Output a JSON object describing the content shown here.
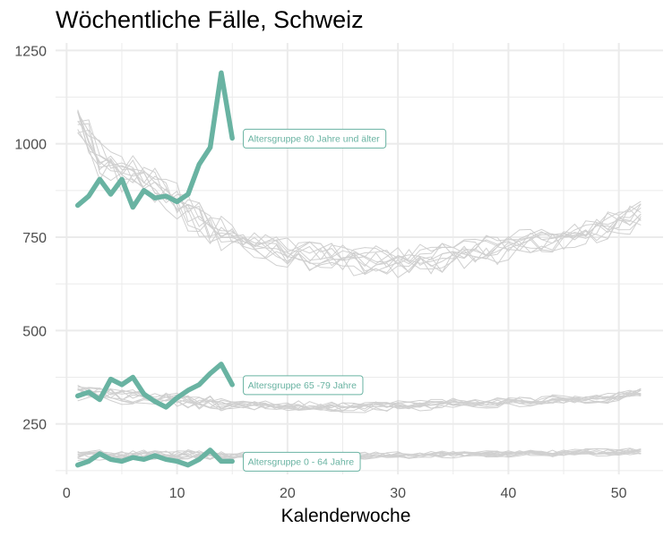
{
  "chart_data": {
    "type": "line",
    "title": "Wöchentliche Fälle, Schweiz",
    "xlabel": "Kalenderwoche",
    "ylabel": "",
    "xlim": [
      -1,
      54
    ],
    "ylim": [
      115,
      1270
    ],
    "x_ticks": [
      0,
      10,
      20,
      30,
      40,
      50
    ],
    "y_ticks": [
      250,
      500,
      750,
      1000,
      1250
    ],
    "grid": true,
    "colors": {
      "highlight": "#69b3a2",
      "background_lines": "#d0d0d0",
      "grid": "#ebebeb"
    },
    "highlight_series": [
      {
        "name": "Altersgruppe 80 Jahre und älter",
        "x": [
          1,
          2,
          3,
          4,
          5,
          6,
          7,
          8,
          9,
          10,
          11,
          12,
          13,
          14,
          15
        ],
        "values": [
          835,
          860,
          905,
          865,
          905,
          830,
          875,
          855,
          860,
          845,
          865,
          945,
          990,
          1190,
          1015
        ]
      },
      {
        "name": "Altersgruppe 65 -79 Jahre",
        "x": [
          1,
          2,
          3,
          4,
          5,
          6,
          7,
          8,
          9,
          10,
          11,
          12,
          13,
          14,
          15
        ],
        "values": [
          325,
          335,
          315,
          370,
          355,
          375,
          330,
          310,
          295,
          320,
          340,
          355,
          385,
          410,
          355
        ]
      },
      {
        "name": "Altersgruppe 0 - 64 Jahre",
        "x": [
          1,
          2,
          3,
          4,
          5,
          6,
          7,
          8,
          9,
          10,
          11,
          12,
          13,
          14,
          15
        ],
        "values": [
          140,
          150,
          170,
          155,
          150,
          160,
          155,
          165,
          155,
          150,
          140,
          155,
          180,
          150,
          150
        ]
      }
    ],
    "background_groups": [
      {
        "base": [
          1060,
          1020,
          960,
          940,
          930,
          920,
          900,
          880,
          860,
          840,
          820,
          800,
          780,
          770,
          755,
          745,
          735,
          725,
          715,
          710,
          705,
          700,
          700,
          695,
          695,
          690,
          688,
          688,
          685,
          685,
          685,
          690,
          690,
          695,
          700,
          705,
          710,
          715,
          720,
          725,
          730,
          735,
          740,
          745,
          750,
          755,
          760,
          770,
          780,
          790,
          800,
          810
        ],
        "spread": 55,
        "count": 11,
        "seed": 11
      },
      {
        "base": [
          335,
          332,
          330,
          328,
          325,
          325,
          322,
          320,
          318,
          315,
          312,
          310,
          308,
          306,
          305,
          303,
          302,
          300,
          300,
          299,
          298,
          297,
          296,
          296,
          296,
          296,
          297,
          298,
          299,
          300,
          301,
          302,
          303,
          304,
          305,
          306,
          307,
          308,
          309,
          310,
          311,
          312,
          313,
          314,
          315,
          316,
          318,
          320,
          322,
          325,
          330,
          335
        ],
        "spread": 22,
        "count": 11,
        "seed": 23
      },
      {
        "base": [
          165,
          166,
          167,
          167,
          168,
          168,
          168,
          168,
          167,
          167,
          167,
          166,
          166,
          165,
          165,
          165,
          164,
          164,
          164,
          163,
          163,
          163,
          163,
          163,
          164,
          164,
          164,
          165,
          165,
          166,
          166,
          167,
          167,
          168,
          168,
          169,
          169,
          170,
          170,
          170,
          171,
          171,
          172,
          172,
          172,
          173,
          173,
          174,
          174,
          175,
          176,
          177
        ],
        "spread": 14,
        "count": 11,
        "seed": 37
      }
    ]
  }
}
